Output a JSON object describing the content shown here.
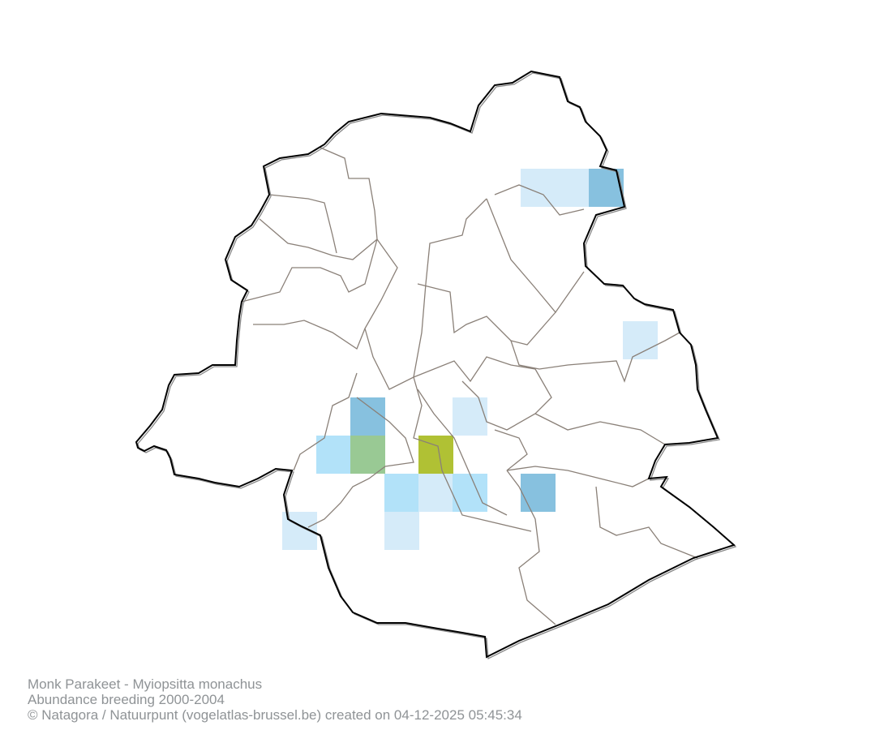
{
  "map": {
    "title": "Monk Parakeet - Myiopsitta monachus",
    "subtitle": "Abundance breeding 2000-2004",
    "credit": "© Natagora / Natuurpunt (vogelatlas-brussel.be) created on 04-12-2025 05:45:34",
    "abundance_class_colors": {
      "1": "#d5ebf9",
      "2": "#b2e2f9",
      "3": "#87c1df",
      "4": "#99c994",
      "5": "#b0c134"
    },
    "boundary_color": "#000000",
    "district_border_color": "#8a8078"
  }
}
